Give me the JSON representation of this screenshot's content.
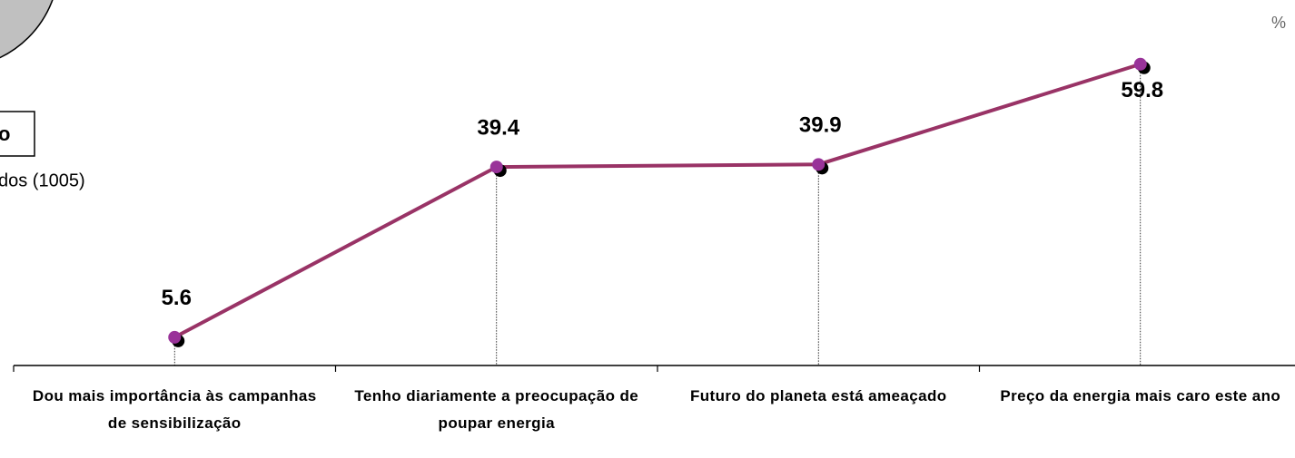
{
  "chart_data": {
    "type": "line",
    "categories": [
      "Dou mais importância às campanhas de sensibilização",
      "Tenho diariamente a preocupação de poupar energia",
      "Futuro do planeta está ameaçado",
      "Preço da energia mais caro este ano"
    ],
    "series": [
      {
        "name": null,
        "color": "#993366",
        "marker_color": "#993399",
        "values": [
          5.6,
          39.4,
          39.9,
          59.8
        ]
      }
    ],
    "ylim": [
      0,
      72
    ],
    "annotations": [
      "o",
      "dos (1005)",
      "%"
    ]
  }
}
